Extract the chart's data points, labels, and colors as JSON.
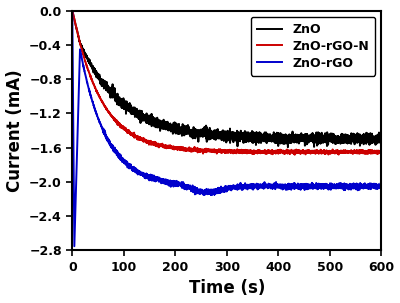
{
  "title": "",
  "xlabel": "Time (s)",
  "ylabel": "Current (mA)",
  "xlim": [
    0,
    600
  ],
  "ylim": [
    -2.8,
    0.0
  ],
  "yticks": [
    0.0,
    -0.4,
    -0.8,
    -1.2,
    -1.6,
    -2.0,
    -2.4,
    -2.8
  ],
  "xticks": [
    0,
    100,
    200,
    300,
    400,
    500,
    600
  ],
  "legend": [
    "ZnO",
    "ZnO-rGO-N",
    "ZnO-rGO"
  ],
  "colors": [
    "#000000",
    "#cc0000",
    "#0000cc"
  ],
  "linewidth": 1.4,
  "background_color": "#ffffff",
  "zno_peak_t": 15,
  "zno_peak_val": -0.38,
  "zno_plateau": -1.5,
  "zno_decay": 0.012,
  "zno_noise": 0.03,
  "rgo_n_peak_t": 15,
  "rgo_n_peak_val": -0.38,
  "rgo_n_plateau": -1.65,
  "rgo_n_decay": 0.018,
  "rgo_n_noise": 0.01,
  "rgo_spike_t": 5,
  "rgo_peak_t": 15,
  "rgo_peak_val": -0.45,
  "rgo_valley_t": 4,
  "rgo_valley_val": -2.75,
  "rgo_plateau": -2.05,
  "rgo_decay": 0.02,
  "rgo_noise": 0.015
}
